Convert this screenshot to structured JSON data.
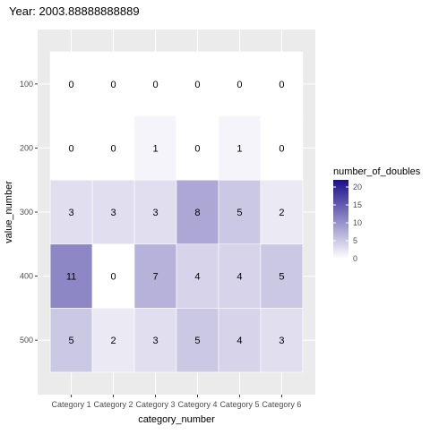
{
  "chart_data": {
    "type": "heatmap",
    "title": "Year: 2003.88888888889",
    "xlabel": "category_number",
    "ylabel": "value_number",
    "x_categories": [
      "Category 1",
      "Category 2",
      "Category 3",
      "Category 4",
      "Category 5",
      "Category 6"
    ],
    "y_categories": [
      "100",
      "200",
      "300",
      "400",
      "500"
    ],
    "values": [
      [
        0,
        0,
        0,
        0,
        0,
        0
      ],
      [
        0,
        0,
        1,
        0,
        1,
        0
      ],
      [
        3,
        3,
        3,
        8,
        5,
        2
      ],
      [
        11,
        0,
        7,
        4,
        4,
        5
      ],
      [
        5,
        2,
        3,
        5,
        4,
        3
      ]
    ],
    "legend": {
      "title": "number_of_doubles",
      "ticks": [
        0,
        5,
        10,
        15,
        20
      ],
      "range": [
        0,
        22
      ],
      "placement": "right"
    },
    "colors": {
      "low": "#ffffff",
      "high": "#1c0e8a",
      "panel_bg": "#ebebeb",
      "grid": "#ffffff"
    },
    "grid": true
  }
}
